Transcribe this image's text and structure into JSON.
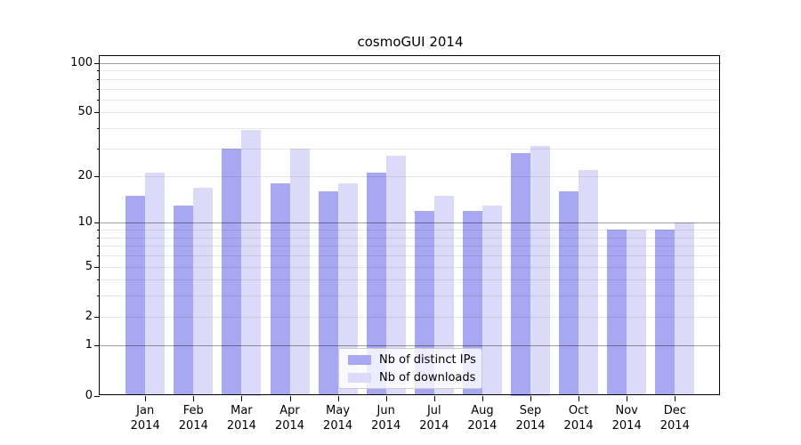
{
  "title": "cosmoGUI 2014",
  "colors": {
    "distinct_ips_bar": "#a7a7f2",
    "downloads_bar": "#dbdbf9",
    "axis": "#000000",
    "major_gridline": "#9e9e9e",
    "minor_gridline": "#e9e9e9",
    "legend_border": "#cccccc"
  },
  "chart_data": {
    "type": "bar",
    "title": "cosmoGUI 2014",
    "categories": [
      "Jan 2014",
      "Feb 2014",
      "Mar 2014",
      "Apr 2014",
      "May 2014",
      "Jun 2014",
      "Jul 2014",
      "Aug 2014",
      "Sep 2014",
      "Oct 2014",
      "Nov 2014",
      "Dec 2014"
    ],
    "series": [
      {
        "name": "Nb of distinct IPs",
        "color": "#a7a7f2",
        "values": [
          15,
          13,
          30,
          18,
          16,
          21,
          12,
          12,
          28,
          16,
          9,
          9
        ]
      },
      {
        "name": "Nb of downloads",
        "color": "#dbdbf9",
        "values": [
          21,
          17,
          39,
          30,
          18,
          27,
          15,
          13,
          31,
          22,
          9,
          10
        ]
      }
    ],
    "xlabel": "",
    "ylabel": "",
    "yaxis": {
      "scale": "log1p",
      "range": [
        0,
        110
      ],
      "tick_values": [
        0,
        1,
        2,
        5,
        10,
        20,
        50,
        100
      ],
      "major_gridlines": [
        1,
        10,
        100
      ],
      "minor_gridlines": [
        2,
        3,
        4,
        5,
        6,
        7,
        8,
        9,
        20,
        30,
        40,
        50,
        60,
        70,
        80,
        90
      ]
    },
    "grid": true,
    "legend_position": "lower center",
    "legend_labels": [
      "Nb of distinct IPs",
      "Nb of downloads"
    ]
  }
}
